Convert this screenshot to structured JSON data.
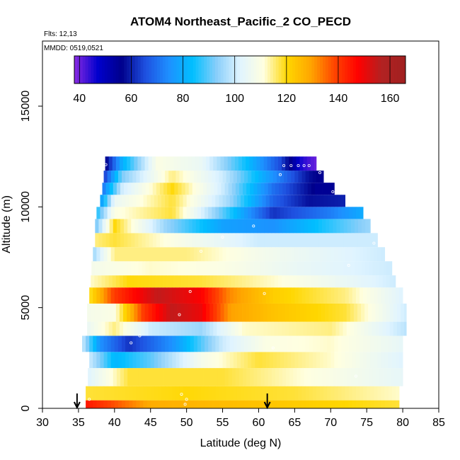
{
  "chart_data": {
    "type": "heatmap",
    "title": "ATOM4 Northeast_Pacific_2 CO_PECD",
    "flights_label": "Flts: 12,13",
    "dates_label": "MMDD: 0519,0521",
    "xlabel": "Latitude (deg N)",
    "ylabel": "Altitude (m)",
    "xlim": [
      30,
      85
    ],
    "ylim": [
      0,
      17500
    ],
    "x_ticks": [
      "30",
      "35",
      "40",
      "45",
      "50",
      "55",
      "60",
      "65",
      "70",
      "75",
      "80",
      "85"
    ],
    "y_ticks": [
      "0",
      "5000",
      "10000",
      "15000"
    ],
    "colorbar": {
      "min": 38,
      "max": 166,
      "ticks": [
        "40",
        "60",
        "80",
        "100",
        "120",
        "140",
        "160"
      ]
    },
    "colors": {
      "scale": [
        "#8a2be2",
        "#0000cd",
        "#00008b",
        "#1e50e0",
        "#1e90ff",
        "#00bfff",
        "#87cefa",
        "#e0f4ff",
        "#ffffe0",
        "#ffd700",
        "#ffa500",
        "#ff4500",
        "#ff0000",
        "#b22222",
        "#a02020"
      ]
    },
    "profile_arrows_lat": [
      34.8,
      61.2
    ],
    "altitude_bands": [
      {
        "z0": 0,
        "z1": 400,
        "lat0": 36,
        "lat1": 79.5,
        "v": [
          [
            36,
            145
          ],
          [
            45,
            128
          ],
          [
            60,
            124
          ],
          [
            79.5,
            118
          ]
        ]
      },
      {
        "z0": 400,
        "z1": 1100,
        "lat0": 36,
        "lat1": 79.5,
        "v": [
          [
            36,
            118
          ],
          [
            50,
            120
          ],
          [
            65,
            118
          ],
          [
            79.5,
            112
          ]
        ]
      },
      {
        "z0": 1100,
        "z1": 2000,
        "lat0": 36.3,
        "lat1": 80,
        "v": [
          [
            36.3,
            102
          ],
          [
            42,
            118
          ],
          [
            55,
            118
          ],
          [
            65,
            112
          ],
          [
            80,
            104
          ]
        ]
      },
      {
        "z0": 2000,
        "z1": 2800,
        "lat0": 36.5,
        "lat1": 80,
        "v": [
          [
            36.5,
            100
          ],
          [
            40,
            82
          ],
          [
            45,
            90
          ],
          [
            52,
            108
          ],
          [
            60,
            118
          ],
          [
            70,
            112
          ],
          [
            80,
            102
          ]
        ]
      },
      {
        "z0": 2800,
        "z1": 3600,
        "lat0": 35.5,
        "lat1": 80,
        "v": [
          [
            35.5,
            100
          ],
          [
            38,
            75
          ],
          [
            42,
            62
          ],
          [
            48,
            75
          ],
          [
            55,
            100
          ],
          [
            61,
            110
          ],
          [
            70,
            112
          ],
          [
            80,
            104
          ]
        ]
      },
      {
        "z0": 3600,
        "z1": 4300,
        "lat0": 36.2,
        "lat1": 80.5,
        "v": [
          [
            36.2,
            105
          ],
          [
            40,
            115
          ],
          [
            45,
            100
          ],
          [
            52,
            95
          ],
          [
            58,
            112
          ],
          [
            70,
            115
          ],
          [
            80.5,
            98
          ]
        ]
      },
      {
        "z0": 4300,
        "z1": 5200,
        "lat0": 36.2,
        "lat1": 80.5,
        "v": [
          [
            36.2,
            108
          ],
          [
            40,
            110
          ],
          [
            44,
            140
          ],
          [
            48,
            155
          ],
          [
            52,
            150
          ],
          [
            56,
            130
          ],
          [
            62,
            124
          ],
          [
            72,
            118
          ],
          [
            80.5,
            100
          ]
        ]
      },
      {
        "z0": 5200,
        "z1": 6000,
        "lat0": 36.5,
        "lat1": 80,
        "v": [
          [
            36.5,
            118
          ],
          [
            40,
            140
          ],
          [
            46,
            155
          ],
          [
            52,
            148
          ],
          [
            56,
            132
          ],
          [
            62,
            122
          ],
          [
            72,
            115
          ],
          [
            80,
            102
          ]
        ]
      },
      {
        "z0": 6000,
        "z1": 6600,
        "lat0": 36.7,
        "lat1": 79,
        "v": [
          [
            36.7,
            112
          ],
          [
            42,
            120
          ],
          [
            52,
            118
          ],
          [
            62,
            112
          ],
          [
            79,
            100
          ]
        ]
      },
      {
        "z0": 6600,
        "z1": 7300,
        "lat0": 36.8,
        "lat1": 78.5,
        "v": [
          [
            36.8,
            108
          ],
          [
            45,
            112
          ],
          [
            55,
            110
          ],
          [
            65,
            105
          ],
          [
            78.5,
            100
          ]
        ]
      },
      {
        "z0": 7300,
        "z1": 8000,
        "lat0": 37,
        "lat1": 77.5,
        "v": [
          [
            37,
            95
          ],
          [
            40,
            115
          ],
          [
            50,
            115
          ],
          [
            60,
            108
          ],
          [
            77.5,
            100
          ]
        ]
      },
      {
        "z0": 8000,
        "z1": 8700,
        "lat0": 37.3,
        "lat1": 76.5,
        "v": [
          [
            37.3,
            115
          ],
          [
            40,
            118
          ],
          [
            50,
            108
          ],
          [
            60,
            100
          ],
          [
            76.5,
            100
          ]
        ]
      },
      {
        "z0": 8700,
        "z1": 9400,
        "lat0": 37.3,
        "lat1": 75.5,
        "v": [
          [
            37.3,
            90
          ],
          [
            40,
            120
          ],
          [
            47,
            95
          ],
          [
            55,
            78
          ],
          [
            62,
            75
          ],
          [
            75.5,
            95
          ]
        ]
      },
      {
        "z0": 9400,
        "z1": 10000,
        "lat0": 37.5,
        "lat1": 74.5,
        "v": [
          [
            37.5,
            85
          ],
          [
            40,
            110
          ],
          [
            48,
            118
          ],
          [
            55,
            90
          ],
          [
            62,
            62
          ],
          [
            70,
            72
          ],
          [
            74.5,
            80
          ]
        ]
      },
      {
        "z0": 10000,
        "z1": 10600,
        "lat0": 38,
        "lat1": 72,
        "v": [
          [
            38,
            75
          ],
          [
            40,
            105
          ],
          [
            48,
            118
          ],
          [
            56,
            95
          ],
          [
            62,
            68
          ],
          [
            67,
            58
          ],
          [
            72,
            60
          ]
        ]
      },
      {
        "z0": 10600,
        "z1": 11200,
        "lat0": 38.3,
        "lat1": 70.5,
        "v": [
          [
            38.3,
            70
          ],
          [
            41,
            100
          ],
          [
            48,
            120
          ],
          [
            55,
            100
          ],
          [
            62,
            70
          ],
          [
            68,
            55
          ],
          [
            70.5,
            55
          ]
        ]
      },
      {
        "z0": 11200,
        "z1": 11800,
        "lat0": 38.5,
        "lat1": 69,
        "v": [
          [
            38.5,
            62
          ],
          [
            41,
            92
          ],
          [
            48,
            115
          ],
          [
            55,
            100
          ],
          [
            62,
            75
          ],
          [
            67,
            58
          ],
          [
            69,
            55
          ]
        ]
      },
      {
        "z0": 11800,
        "z1": 12500,
        "lat0": 38.7,
        "lat1": 68,
        "v": [
          [
            38.7,
            55
          ],
          [
            41,
            80
          ],
          [
            46,
            110
          ],
          [
            52,
            105
          ],
          [
            58,
            85
          ],
          [
            63,
            65
          ],
          [
            66,
            45
          ],
          [
            68,
            40
          ]
        ]
      }
    ],
    "sample_points": [
      [
        38.8,
        12100
      ],
      [
        63.5,
        12050
      ],
      [
        64.5,
        12050
      ],
      [
        65.5,
        12050
      ],
      [
        66.3,
        12050
      ],
      [
        67,
        12050
      ],
      [
        63,
        11600
      ],
      [
        68.5,
        11700
      ],
      [
        70.3,
        10750
      ],
      [
        59.3,
        9050
      ],
      [
        55,
        8500
      ],
      [
        76,
        8200
      ],
      [
        52,
        7800
      ],
      [
        72.5,
        7100
      ],
      [
        50.5,
        5800
      ],
      [
        60.8,
        5700
      ],
      [
        49,
        4650
      ],
      [
        43.5,
        3600
      ],
      [
        42.3,
        3250
      ],
      [
        62,
        3000
      ],
      [
        73.5,
        1600
      ],
      [
        49.3,
        700
      ],
      [
        50,
        450
      ],
      [
        49.8,
        200
      ],
      [
        36.5,
        450
      ]
    ]
  }
}
